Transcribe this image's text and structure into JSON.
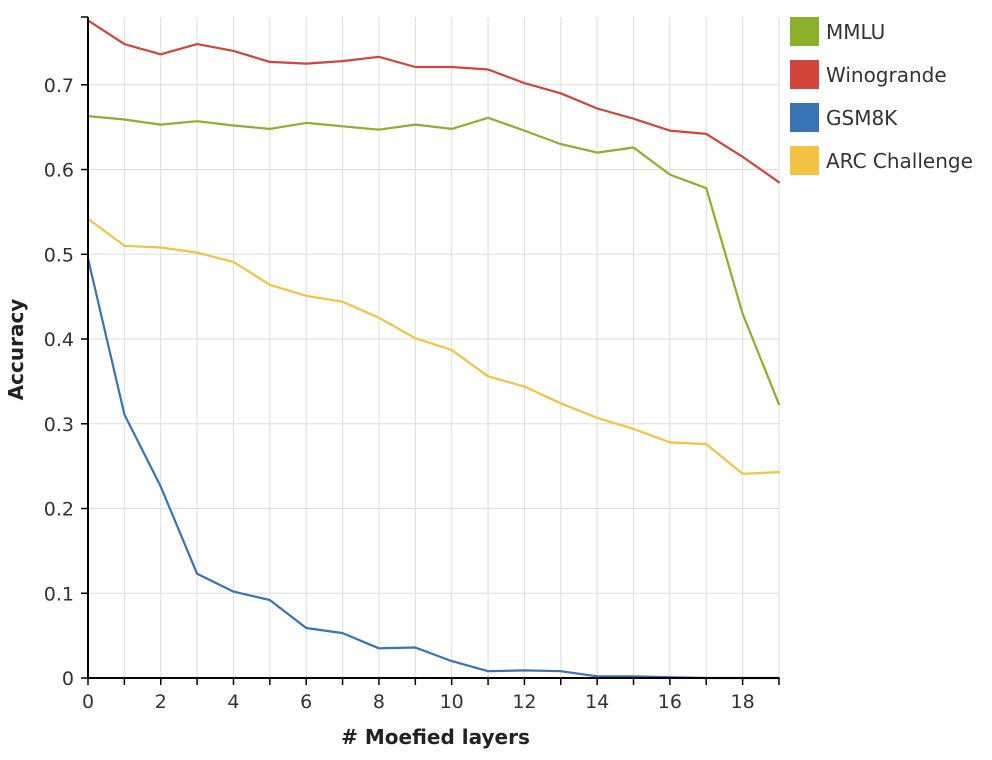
{
  "chart_data": {
    "type": "line",
    "xlabel": "# Moefied layers",
    "ylabel": "Accuracy",
    "xlim": [
      0,
      19
    ],
    "ylim": [
      0,
      0.78
    ],
    "xticks": [
      0,
      2,
      4,
      6,
      8,
      10,
      12,
      14,
      16,
      18
    ],
    "yticks": [
      0,
      0.1,
      0.2,
      0.3,
      0.4,
      0.5,
      0.6,
      0.7
    ],
    "ytick_labels": [
      "0",
      "0.1",
      "0.2",
      "0.3",
      "0.4",
      "0.5",
      "0.6",
      "0.7"
    ],
    "grid": true,
    "legend_position": "top-right",
    "x": [
      0,
      1,
      2,
      3,
      4,
      5,
      6,
      7,
      8,
      9,
      10,
      11,
      12,
      13,
      14,
      15,
      16,
      17,
      18,
      19
    ],
    "series": [
      {
        "name": "MMLU",
        "color": "#8bb02a",
        "values": [
          0.663,
          0.659,
          0.653,
          0.657,
          0.652,
          0.648,
          0.655,
          0.651,
          0.647,
          0.653,
          0.648,
          0.661,
          0.646,
          0.63,
          0.62,
          0.626,
          0.594,
          0.578,
          0.43,
          0.323
        ]
      },
      {
        "name": "Winogrande",
        "color": "#d1453b",
        "values": [
          0.776,
          0.748,
          0.736,
          0.748,
          0.74,
          0.727,
          0.725,
          0.728,
          0.733,
          0.721,
          0.721,
          0.718,
          0.702,
          0.69,
          0.672,
          0.66,
          0.646,
          0.642,
          0.615,
          0.585
        ]
      },
      {
        "name": "GSM8K",
        "color": "#3873b5",
        "values": [
          0.495,
          0.311,
          0.226,
          0.123,
          0.102,
          0.092,
          0.059,
          0.053,
          0.035,
          0.036,
          0.02,
          0.008,
          0.009,
          0.008,
          0.002,
          0.002,
          0.001,
          0.0,
          0.0,
          0.0
        ]
      },
      {
        "name": "ARC Challenge",
        "color": "#f4c242",
        "values": [
          0.542,
          0.51,
          0.508,
          0.502,
          0.491,
          0.464,
          0.451,
          0.444,
          0.425,
          0.401,
          0.387,
          0.356,
          0.344,
          0.324,
          0.307,
          0.294,
          0.278,
          0.276,
          0.241,
          0.243
        ]
      }
    ]
  }
}
